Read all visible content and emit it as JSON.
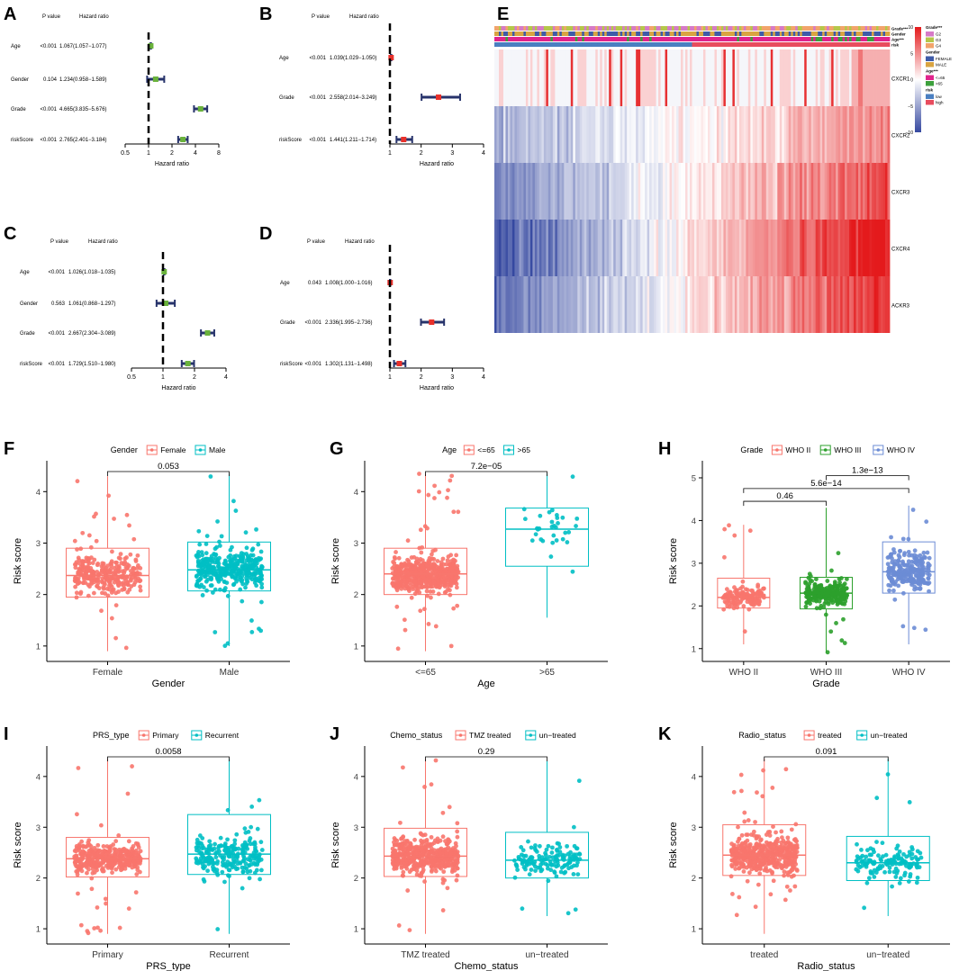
{
  "colors": {
    "red": "#F8766D",
    "teal": "#00BFC4",
    "green": "#2CA02C",
    "blue": "#6C8CD5",
    "forest_green": "#6AB23C",
    "forest_red": "#E8312B",
    "forest_navy": "#27336B",
    "heat_low": "#3548A0",
    "heat_mid": "#FFFFFF",
    "heat_high": "#E41A1C",
    "ann_g2": "#D67AC7",
    "ann_g3": "#B5C74A",
    "ann_g4": "#F2A46B",
    "ann_female": "#3E5BA8",
    "ann_male": "#D9A441",
    "ann_le65": "#E0248C",
    "ann_gt65": "#3CA03C",
    "ann_low": "#4A7FC1",
    "ann_high": "#E84C5E"
  },
  "chart_data": [
    {
      "id": "A",
      "type": "forest",
      "header": {
        "pvalue": "P value",
        "hr": "Hazard ratio"
      },
      "xlabel": "Hazard ratio",
      "scale": "log",
      "xlim": [
        0.5,
        8
      ],
      "ticks": [
        0.5,
        1,
        2,
        4,
        8
      ],
      "tick_labels": [
        "0.5",
        "1",
        "2",
        "4",
        "8"
      ],
      "marker_color": "green",
      "rows": [
        {
          "label": "Age",
          "p": "<0.001",
          "hr_text": "1.067(1.057−1.077)",
          "hr": 1.067,
          "lo": 1.057,
          "hi": 1.077
        },
        {
          "label": "Gender",
          "p": "0.104",
          "hr_text": "1.234(0.958−1.589)",
          "hr": 1.234,
          "lo": 0.958,
          "hi": 1.589
        },
        {
          "label": "Grade",
          "p": "<0.001",
          "hr_text": "4.665(3.835−5.676)",
          "hr": 4.665,
          "lo": 3.835,
          "hi": 5.676
        },
        {
          "label": "riskScore",
          "p": "<0.001",
          "hr_text": "2.765(2.401−3.184)",
          "hr": 2.765,
          "lo": 2.401,
          "hi": 3.184
        }
      ]
    },
    {
      "id": "B",
      "type": "forest",
      "header": {
        "pvalue": "P value",
        "hr": "Hazard ratio"
      },
      "xlabel": "Hazard ratio",
      "scale": "linear",
      "xlim": [
        1,
        4
      ],
      "ticks": [
        1,
        2,
        3,
        4
      ],
      "tick_labels": [
        "1",
        "2",
        "3",
        "4"
      ],
      "marker_color": "red",
      "rows": [
        {
          "label": "Age",
          "p": "<0.001",
          "hr_text": "1.039(1.029−1.050)",
          "hr": 1.039,
          "lo": 1.029,
          "hi": 1.05
        },
        {
          "label": "Grade",
          "p": "<0.001",
          "hr_text": "2.558(2.014−3.249)",
          "hr": 2.558,
          "lo": 2.014,
          "hi": 3.249
        },
        {
          "label": "riskScore",
          "p": "<0.001",
          "hr_text": "1.441(1.211−1.714)",
          "hr": 1.441,
          "lo": 1.211,
          "hi": 1.714
        }
      ]
    },
    {
      "id": "C",
      "type": "forest",
      "header": {
        "pvalue": "P value",
        "hr": "Hazard ratio"
      },
      "xlabel": "Hazard ratio",
      "scale": "log",
      "xlim": [
        0.5,
        4
      ],
      "ticks": [
        0.5,
        1,
        2,
        4
      ],
      "tick_labels": [
        "0.5",
        "1",
        "2",
        "4"
      ],
      "marker_color": "green",
      "rows": [
        {
          "label": "Age",
          "p": "<0.001",
          "hr_text": "1.026(1.018−1.035)",
          "hr": 1.026,
          "lo": 1.018,
          "hi": 1.035
        },
        {
          "label": "Gender",
          "p": "0.563",
          "hr_text": "1.061(0.868−1.297)",
          "hr": 1.061,
          "lo": 0.868,
          "hi": 1.297
        },
        {
          "label": "Grade",
          "p": "<0.001",
          "hr_text": "2.667(2.304−3.089)",
          "hr": 2.667,
          "lo": 2.304,
          "hi": 3.089
        },
        {
          "label": "riskScore",
          "p": "<0.001",
          "hr_text": "1.729(1.510−1.980)",
          "hr": 1.729,
          "lo": 1.51,
          "hi": 1.98
        }
      ]
    },
    {
      "id": "D",
      "type": "forest",
      "header": {
        "pvalue": "P value",
        "hr": "Hazard ratio"
      },
      "xlabel": "Hazard ratio",
      "scale": "linear",
      "xlim": [
        1,
        4
      ],
      "ticks": [
        1,
        2,
        3,
        4
      ],
      "tick_labels": [
        "1",
        "2",
        "3",
        "4"
      ],
      "marker_color": "red",
      "rows": [
        {
          "label": "Age",
          "p": "0.043",
          "hr_text": "1.008(1.000−1.016)",
          "hr": 1.008,
          "lo": 1.0,
          "hi": 1.016
        },
        {
          "label": "Grade",
          "p": "<0.001",
          "hr_text": "2.336(1.995−2.736)",
          "hr": 2.336,
          "lo": 1.995,
          "hi": 2.736
        },
        {
          "label": "riskScore",
          "p": "<0.001",
          "hr_text": "1.302(1.131−1.498)",
          "hr": 1.302,
          "lo": 1.131,
          "hi": 1.498
        }
      ]
    },
    {
      "id": "E",
      "type": "heatmap",
      "rows": [
        "CXCR1",
        "CXCR2",
        "CXCR3",
        "CXCR4",
        "ACKR3"
      ],
      "annotation_tracks": [
        "Grade***",
        "Gender",
        "Age***",
        "risk"
      ],
      "colorbar": {
        "min": -10,
        "max": 10,
        "ticks": [
          10,
          5,
          0,
          -5,
          -10
        ],
        "tick_labels": [
          "10",
          "5",
          "0",
          "−5",
          "−10"
        ]
      },
      "legend": [
        {
          "title": "Grade***",
          "items": [
            {
              "label": "G2",
              "color": "ann_g2"
            },
            {
              "label": "G3",
              "color": "ann_g3"
            },
            {
              "label": "G4",
              "color": "ann_g4"
            }
          ]
        },
        {
          "title": "Gender",
          "items": [
            {
              "label": "FEMALE",
              "color": "ann_female"
            },
            {
              "label": "MALE",
              "color": "ann_male"
            }
          ]
        },
        {
          "title": "Age***",
          "items": [
            {
              "label": "<=65",
              "color": "ann_le65"
            },
            {
              "label": ">65",
              "color": "ann_gt65"
            }
          ]
        },
        {
          "title": "risk",
          "items": [
            {
              "label": "low",
              "color": "ann_low"
            },
            {
              "label": "high",
              "color": "ann_high"
            }
          ]
        }
      ],
      "risk_split_fraction": 0.5
    },
    {
      "id": "F",
      "type": "box",
      "legend_title": "Gender",
      "xlabel": "Gender",
      "ylabel": "Risk score",
      "ylim": [
        0.7,
        4.6
      ],
      "yticks": [
        1,
        2,
        3,
        4
      ],
      "groups": [
        {
          "name": "Female",
          "color": "red",
          "n": 300,
          "min": 0.9,
          "q1": 1.95,
          "median": 2.37,
          "q3": 2.9,
          "max": 4.3
        },
        {
          "name": "Male",
          "color": "teal",
          "n": 380,
          "min": 1.0,
          "q1": 2.07,
          "median": 2.48,
          "q3": 3.02,
          "max": 4.35
        }
      ],
      "comparisons": [
        {
          "from": 0,
          "to": 1,
          "label": "0.053"
        }
      ]
    },
    {
      "id": "G",
      "type": "box",
      "legend_title": "Age",
      "xlabel": "Age",
      "ylabel": "Risk score",
      "ylim": [
        0.7,
        4.6
      ],
      "yticks": [
        1,
        2,
        3,
        4
      ],
      "groups": [
        {
          "name": "<=65",
          "color": "red",
          "n": 560,
          "min": 0.9,
          "q1": 2.0,
          "median": 2.4,
          "q3": 2.9,
          "max": 4.35
        },
        {
          "name": ">65",
          "color": "teal",
          "n": 32,
          "min": 1.55,
          "q1": 2.55,
          "median": 3.27,
          "q3": 3.68,
          "max": 4.35
        }
      ],
      "comparisons": [
        {
          "from": 0,
          "to": 1,
          "label": "7.2e−05"
        }
      ]
    },
    {
      "id": "H",
      "type": "box",
      "legend_title": "Grade",
      "xlabel": "Grade",
      "ylabel": "Risk score",
      "ylim": [
        0.7,
        5.4
      ],
      "yticks": [
        1,
        2,
        3,
        4,
        5
      ],
      "groups": [
        {
          "name": "WHO II",
          "color": "red",
          "n": 150,
          "min": 1.1,
          "q1": 1.95,
          "median": 2.2,
          "q3": 2.65,
          "max": 3.9
        },
        {
          "name": "WHO III",
          "color": "green",
          "n": 250,
          "min": 0.9,
          "q1": 1.93,
          "median": 2.3,
          "q3": 2.67,
          "max": 4.3
        },
        {
          "name": "WHO IV",
          "color": "blue",
          "n": 240,
          "min": 1.1,
          "q1": 2.3,
          "median": 2.8,
          "q3": 3.5,
          "max": 4.35
        }
      ],
      "comparisons": [
        {
          "from": 0,
          "to": 1,
          "label": "0.46"
        },
        {
          "from": 0,
          "to": 2,
          "label": "5.6e−14"
        },
        {
          "from": 1,
          "to": 2,
          "label": "1.3e−13"
        }
      ]
    },
    {
      "id": "I",
      "type": "box",
      "legend_title": "PRS_type",
      "xlabel": "PRS_type",
      "ylabel": "Risk score",
      "ylim": [
        0.7,
        4.6
      ],
      "yticks": [
        1,
        2,
        3,
        4
      ],
      "groups": [
        {
          "name": "Primary",
          "color": "red",
          "n": 400,
          "min": 0.9,
          "q1": 2.02,
          "median": 2.38,
          "q3": 2.8,
          "max": 4.35
        },
        {
          "name": "Recurrent",
          "color": "teal",
          "n": 240,
          "min": 0.9,
          "q1": 2.07,
          "median": 2.47,
          "q3": 3.25,
          "max": 4.35
        }
      ],
      "comparisons": [
        {
          "from": 0,
          "to": 1,
          "label": "0.0058"
        }
      ]
    },
    {
      "id": "J",
      "type": "box",
      "legend_title": "Chemo_status",
      "xlabel": "Chemo_status",
      "ylabel": "Risk score",
      "ylim": [
        0.7,
        4.6
      ],
      "yticks": [
        1,
        2,
        3,
        4
      ],
      "groups": [
        {
          "name": "TMZ treated",
          "color": "red",
          "n": 480,
          "min": 0.9,
          "q1": 2.03,
          "median": 2.43,
          "q3": 2.98,
          "max": 4.35
        },
        {
          "name": "un−treated",
          "color": "teal",
          "n": 150,
          "min": 1.25,
          "q1": 2.0,
          "median": 2.35,
          "q3": 2.9,
          "max": 4.3
        }
      ],
      "comparisons": [
        {
          "from": 0,
          "to": 1,
          "label": "0.29"
        }
      ]
    },
    {
      "id": "K",
      "type": "box",
      "legend_title": "Radio_status",
      "xlabel": "Radio_status",
      "ylabel": "Risk score",
      "ylim": [
        0.7,
        4.6
      ],
      "yticks": [
        1,
        2,
        3,
        4
      ],
      "groups": [
        {
          "name": "treated",
          "color": "red",
          "n": 520,
          "min": 0.9,
          "q1": 2.05,
          "median": 2.45,
          "q3": 3.05,
          "max": 4.35
        },
        {
          "name": "un−treated",
          "color": "teal",
          "n": 140,
          "min": 1.25,
          "q1": 1.95,
          "median": 2.3,
          "q3": 2.82,
          "max": 4.35
        }
      ],
      "comparisons": [
        {
          "from": 0,
          "to": 1,
          "label": "0.091"
        }
      ]
    }
  ]
}
